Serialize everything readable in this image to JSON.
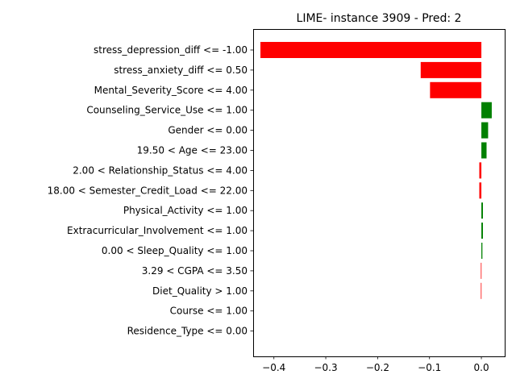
{
  "chart_data": {
    "type": "bar",
    "orientation": "horizontal",
    "title": "LIME- instance 3909 - Pred: 2",
    "xlabel": "",
    "ylabel": "",
    "xlim": [
      -0.44,
      0.045
    ],
    "xticks": [
      -0.4,
      -0.3,
      -0.2,
      -0.1,
      0.0
    ],
    "xtick_labels": [
      "−0.4",
      "−0.3",
      "−0.2",
      "−0.1",
      "0.0"
    ],
    "grid": false,
    "categories": [
      "stress_depression_diff <= -1.00",
      "stress_anxiety_diff <= 0.50",
      "Mental_Severity_Score <= 4.00",
      "Counseling_Service_Use <= 1.00",
      "Gender <= 0.00",
      "19.50 < Age <= 23.00",
      "2.00 < Relationship_Status <= 4.00",
      "18.00 < Semester_Credit_Load <= 22.00",
      "Physical_Activity <= 1.00",
      "Extracurricular_Involvement <= 1.00",
      "0.00 < Sleep_Quality <= 1.00",
      "3.29 < CGPA <= 3.50",
      "Diet_Quality > 1.00",
      "Course <= 1.00",
      "Residence_Type <= 0.00"
    ],
    "values": [
      -0.426,
      -0.117,
      -0.099,
      0.02,
      0.013,
      0.01,
      -0.004,
      -0.004,
      0.003,
      0.003,
      0.002,
      -0.001,
      -0.001,
      0.0,
      0.0
    ],
    "colors": {
      "positive": "#008000",
      "negative": "#ff0000"
    }
  }
}
